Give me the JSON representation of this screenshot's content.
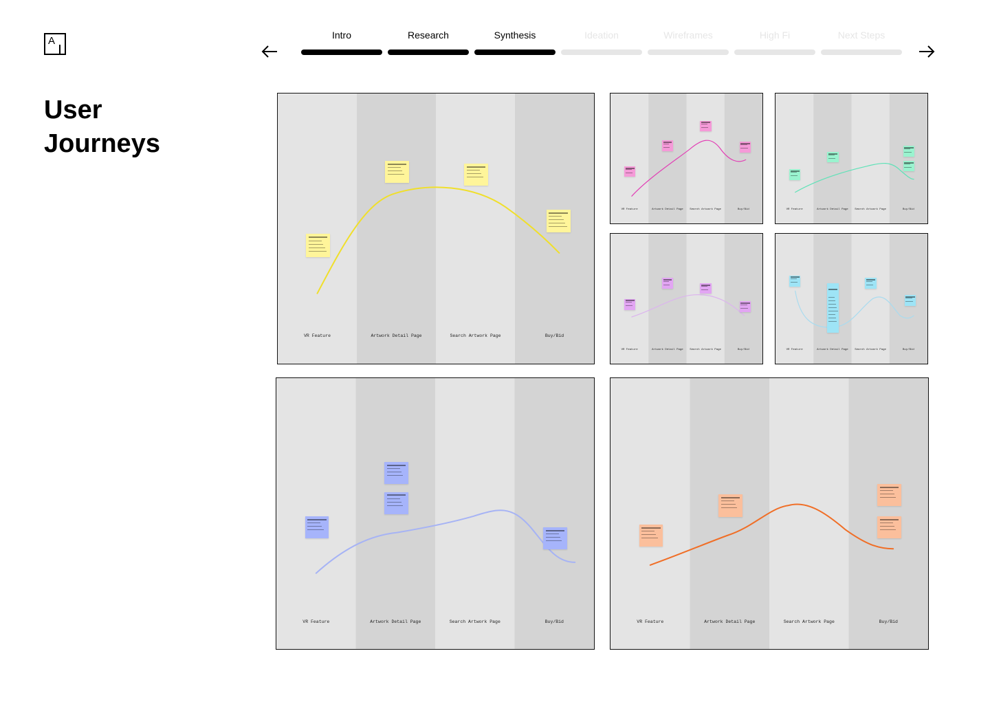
{
  "page": {
    "title": "User Journeys"
  },
  "logo": {
    "letter": "A",
    "icon": "a-logo-icon"
  },
  "navigation": {
    "prev_icon": "arrow-left-icon",
    "next_icon": "arrow-right-icon",
    "steps": [
      {
        "label": "Intro",
        "status": "complete"
      },
      {
        "label": "Research",
        "status": "complete"
      },
      {
        "label": "Synthesis",
        "status": "complete"
      },
      {
        "label": "Ideation",
        "status": "upcoming"
      },
      {
        "label": "Wireframes",
        "status": "upcoming"
      },
      {
        "label": "High Fi",
        "status": "upcoming"
      },
      {
        "label": "Next Steps",
        "status": "upcoming"
      }
    ],
    "colors": {
      "complete": "#000000",
      "upcoming": "#e6e6e6"
    }
  },
  "journey_maps": {
    "stages": [
      "VR Feature",
      "Artwork Detail Page",
      "Search Artwork Page",
      "Buy/Bid"
    ],
    "lane_colors": {
      "light": "#e4e4e4",
      "dark": "#d4d4d4"
    },
    "boards": [
      {
        "name": "journey-map-yellow",
        "curve_color": "#f0df2a",
        "note_color": "#fff59a"
      },
      {
        "name": "journey-map-pink",
        "curve_color": "#e23fb5",
        "note_color": "#f59ad8"
      },
      {
        "name": "journey-map-mint",
        "curve_color": "#5ee2b7",
        "note_color": "#9af3cf"
      },
      {
        "name": "journey-map-lavender",
        "curve_color": "#dcb4ee",
        "note_color": "#e2a5f3"
      },
      {
        "name": "journey-map-cyan",
        "curve_color": "#a9dbef",
        "note_color": "#9ee4f6"
      },
      {
        "name": "journey-map-blue",
        "curve_color": "#a6b3f5",
        "note_color": "#a6b4fb"
      },
      {
        "name": "journey-map-orange",
        "curve_color": "#f06e26",
        "note_color": "#fbbf9c"
      }
    ]
  }
}
